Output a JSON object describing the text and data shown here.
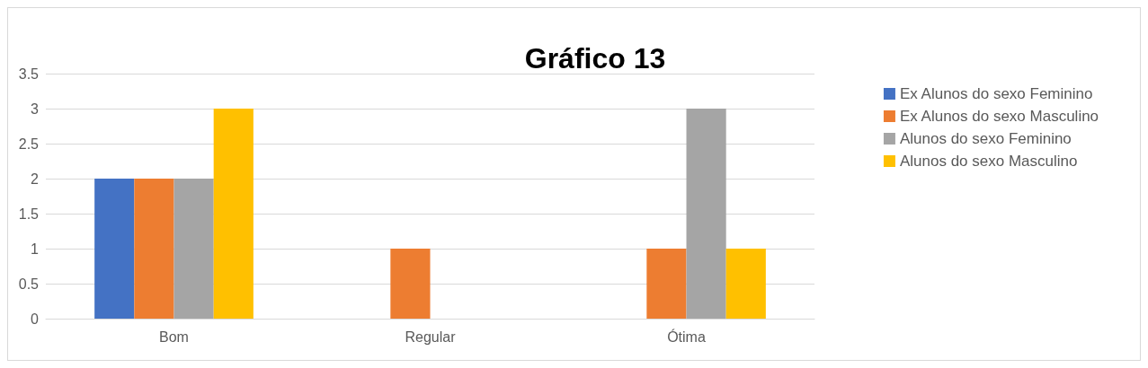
{
  "chart_data": {
    "type": "bar",
    "title": "Gráfico 13",
    "categories": [
      "Bom",
      "Regular",
      "Ótima"
    ],
    "series": [
      {
        "name": "Ex Alunos do sexo Feminino",
        "color": "#4472c4",
        "values": [
          2,
          0,
          0
        ]
      },
      {
        "name": "Ex Alunos do sexo Masculino",
        "color": "#ed7d31",
        "values": [
          2,
          1,
          1
        ]
      },
      {
        "name": "Alunos do sexo Feminino",
        "color": "#a5a5a5",
        "values": [
          2,
          0,
          3
        ]
      },
      {
        "name": "Alunos do sexo Masculino",
        "color": "#ffc000",
        "values": [
          3,
          0,
          1
        ]
      }
    ],
    "ylim": [
      0,
      3.5
    ],
    "yticks": [
      0,
      0.5,
      1,
      1.5,
      2,
      2.5,
      3,
      3.5
    ],
    "grid": "y",
    "legend": "top right"
  }
}
